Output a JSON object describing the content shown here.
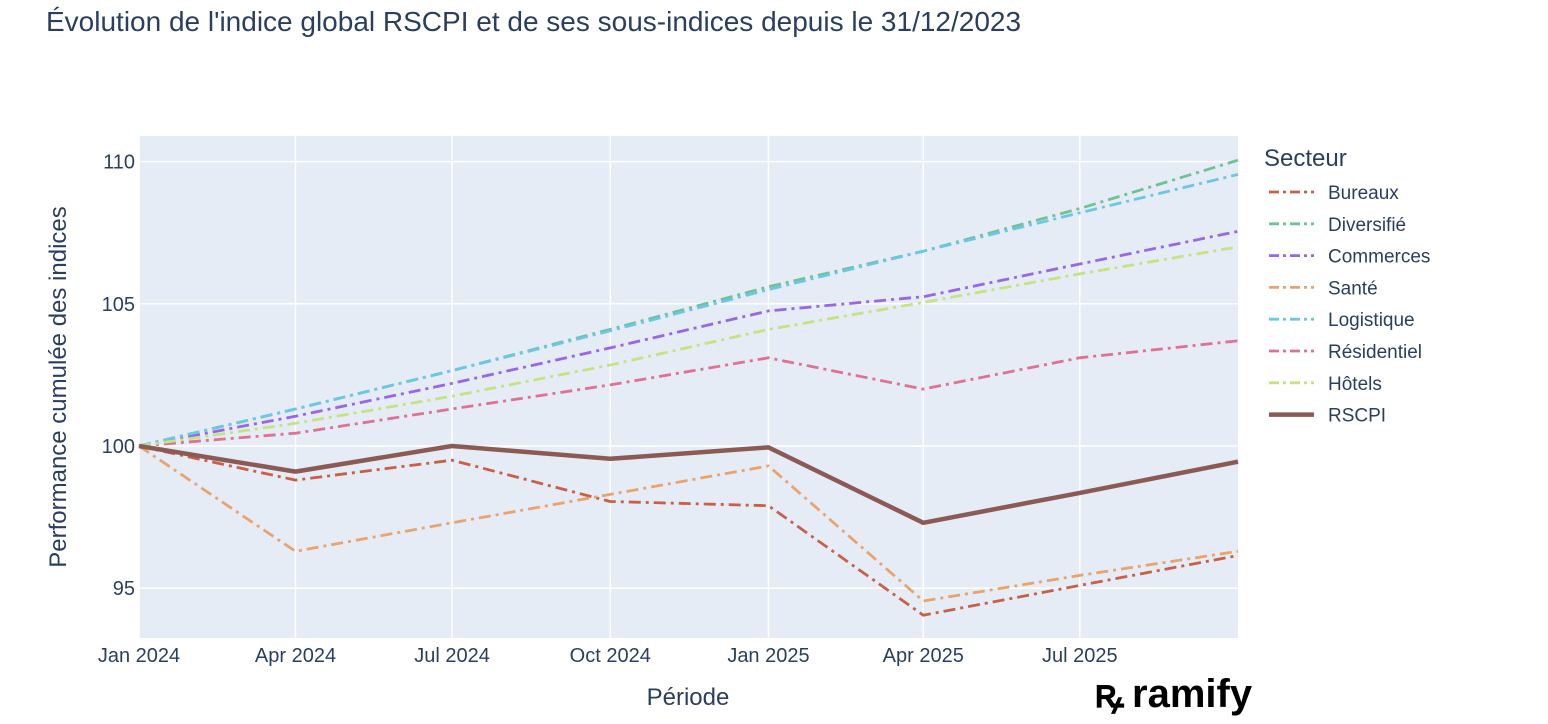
{
  "chart_data": {
    "type": "line",
    "title": "Évolution de l'indice global RSCPI et de ses sous-indices depuis le 31/12/2023",
    "xlabel": "Période",
    "ylabel": "Performance cumulée des indices",
    "x": [
      "2024-01-01",
      "2024-04-01",
      "2024-07-01",
      "2024-10-01",
      "2025-01-01",
      "2025-04-01",
      "2025-07-01",
      "2025-10-01"
    ],
    "x_ticks": [
      "2024-01-01",
      "2024-04-01",
      "2024-07-01",
      "2024-10-01",
      "2025-01-01",
      "2025-04-01",
      "2025-07-01"
    ],
    "x_tick_labels": [
      "Jan 2024",
      "Apr 2024",
      "Jul 2024",
      "Oct 2024",
      "Jan 2025",
      "Apr 2025",
      "Jul 2025"
    ],
    "x_range": [
      "2024-01-01",
      "2025-10-01"
    ],
    "ylim": [
      93.25,
      110.9
    ],
    "y_ticks": [
      95,
      100,
      105,
      110
    ],
    "grid": true,
    "legend_title": "Secteur",
    "legend_position": "right",
    "series": [
      {
        "name": "Bureaux",
        "color": "#c95f47",
        "dash": "dashdot",
        "values": [
          100,
          98.8,
          99.5,
          98.05,
          97.9,
          94.05,
          95.1,
          96.15
        ]
      },
      {
        "name": "Diversifié",
        "color": "#6ec395",
        "dash": "dashdot",
        "values": [
          100,
          101.3,
          102.65,
          104.1,
          105.6,
          106.85,
          108.35,
          110.05
        ]
      },
      {
        "name": "Commerces",
        "color": "#9966e6",
        "dash": "dashdot",
        "values": [
          100,
          101.05,
          102.2,
          103.45,
          104.75,
          105.25,
          106.4,
          107.55
        ]
      },
      {
        "name": "Santé",
        "color": "#e9a36e",
        "dash": "dashdot",
        "values": [
          100,
          96.3,
          97.3,
          98.3,
          99.3,
          94.55,
          95.45,
          96.3
        ]
      },
      {
        "name": "Logistique",
        "color": "#6cc6e6",
        "dash": "dashdot",
        "values": [
          100,
          101.3,
          102.65,
          104.05,
          105.5,
          106.85,
          108.2,
          109.55
        ]
      },
      {
        "name": "Résidentiel",
        "color": "#de7291",
        "dash": "dashdot",
        "values": [
          100,
          100.45,
          101.3,
          102.15,
          103.1,
          102.0,
          103.1,
          103.7
        ]
      },
      {
        "name": "Hôtels",
        "color": "#c5e382",
        "dash": "dashdot",
        "values": [
          100,
          100.8,
          101.75,
          102.85,
          104.1,
          105.05,
          106.05,
          107.0
        ]
      },
      {
        "name": "RSCPI",
        "color": "#8b5a55",
        "dash": "solid",
        "values": [
          100,
          99.1,
          100.0,
          99.55,
          99.95,
          97.3,
          98.35,
          99.45
        ]
      }
    ]
  },
  "brand": {
    "mark": "ꝶ",
    "name": "ramify"
  }
}
